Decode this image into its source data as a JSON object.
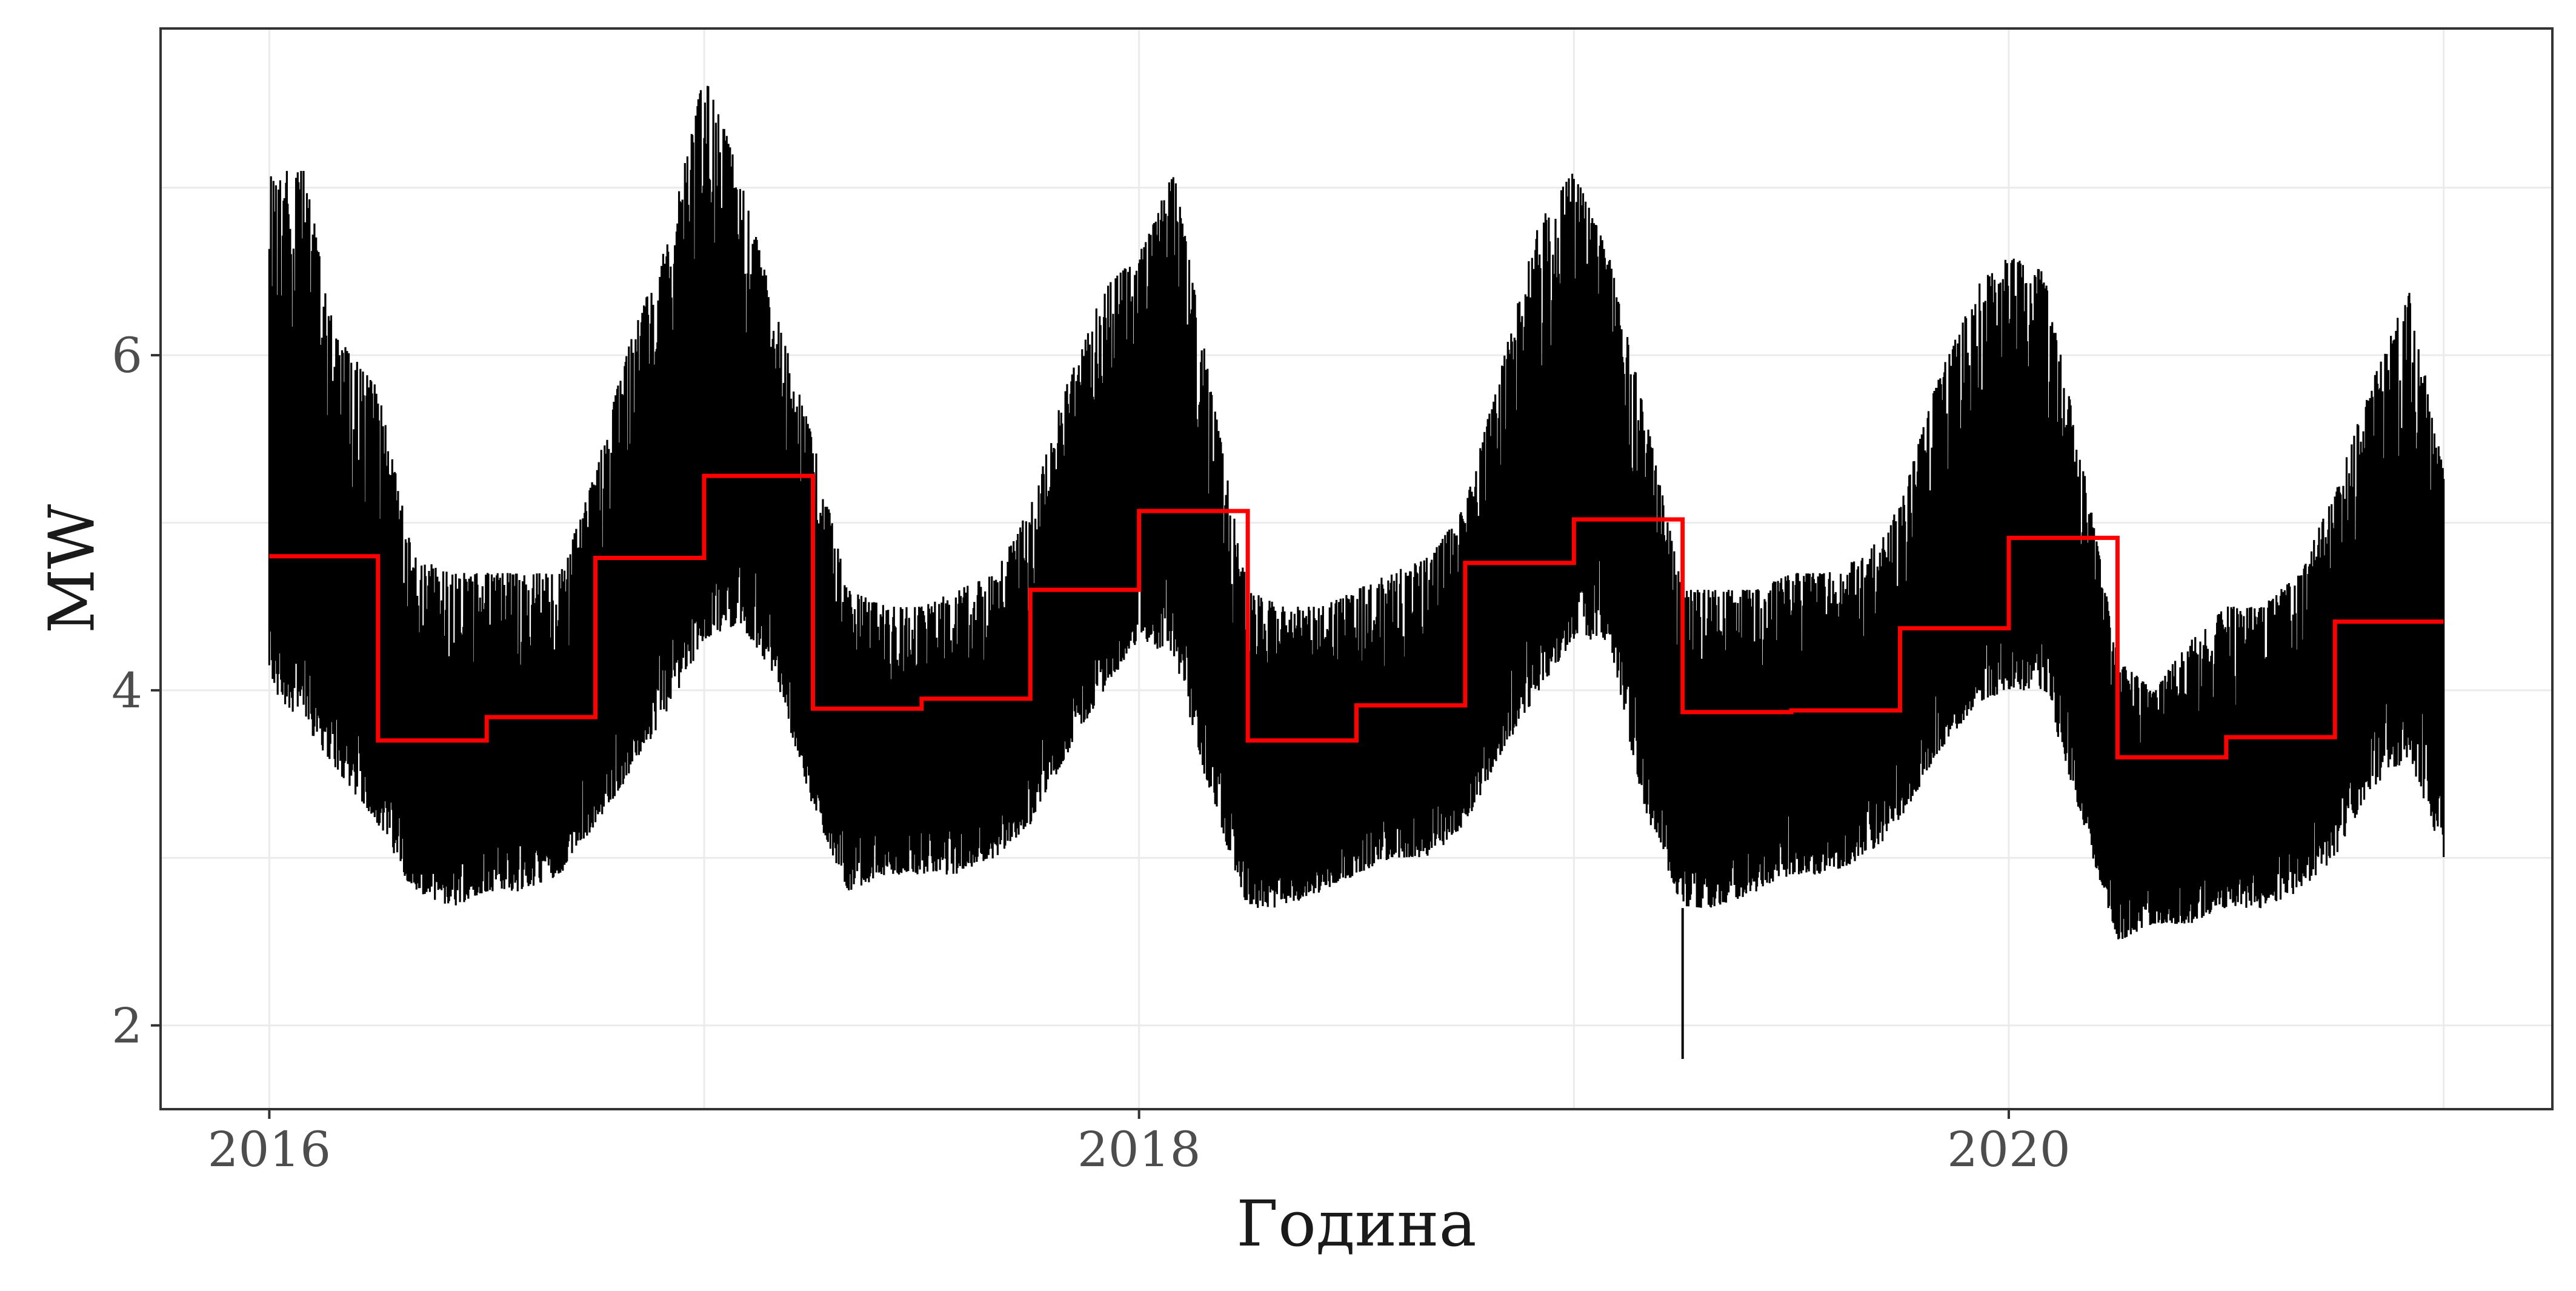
{
  "chart_data": {
    "type": "line",
    "title": "",
    "xlabel": "Година",
    "ylabel": "MW",
    "xlim": [
      2015.75,
      2021.25
    ],
    "ylim": [
      1.5,
      7.95
    ],
    "x_ticks": [
      {
        "value": 2016,
        "label": "2016"
      },
      {
        "value": 2018,
        "label": "2018"
      },
      {
        "value": 2020,
        "label": "2020"
      }
    ],
    "y_ticks": [
      {
        "value": 2,
        "label": "2"
      },
      {
        "value": 4,
        "label": "4"
      },
      {
        "value": 6,
        "label": "6"
      }
    ],
    "grid": true,
    "legend": "none",
    "colors": {
      "series": "#000000",
      "step_mean": "#ff0000",
      "grid": "#ebebeb",
      "panel_border": "#333333"
    },
    "series": [
      {
        "kind": "band",
        "color": "#000000",
        "x": [
          2016.0,
          2016.08,
          2016.16,
          2016.25,
          2016.33,
          2016.42,
          2016.5,
          2016.58,
          2016.67,
          2016.75,
          2016.83,
          2016.92,
          2017.0,
          2017.08,
          2017.16,
          2017.25,
          2017.33,
          2017.42,
          2017.5,
          2017.58,
          2017.67,
          2017.75,
          2017.83,
          2017.92,
          2018.0,
          2018.08,
          2018.16,
          2018.25,
          2018.33,
          2018.42,
          2018.5,
          2018.58,
          2018.67,
          2018.75,
          2018.83,
          2018.92,
          2019.0,
          2019.08,
          2019.16,
          2019.25,
          2019.33,
          2019.42,
          2019.5,
          2019.58,
          2019.67,
          2019.75,
          2019.83,
          2019.92,
          2020.0,
          2020.08,
          2020.16,
          2020.25,
          2020.33,
          2020.42,
          2020.5,
          2020.58,
          2020.67,
          2020.75,
          2020.83,
          2020.92,
          2021.0
        ],
        "min": [
          4.0,
          3.8,
          3.5,
          3.2,
          2.8,
          2.7,
          2.8,
          2.8,
          2.9,
          3.2,
          3.5,
          3.9,
          4.3,
          4.4,
          4.1,
          3.3,
          2.8,
          2.9,
          2.9,
          2.9,
          3.0,
          3.2,
          3.6,
          4.0,
          4.3,
          4.2,
          3.4,
          2.7,
          2.7,
          2.8,
          2.9,
          3.0,
          3.0,
          3.2,
          3.6,
          4.0,
          4.3,
          4.3,
          3.3,
          2.7,
          2.7,
          2.8,
          2.9,
          2.9,
          3.0,
          3.2,
          3.6,
          3.9,
          4.0,
          4.0,
          3.3,
          2.5,
          2.6,
          2.6,
          2.7,
          2.7,
          2.8,
          3.0,
          3.4,
          3.6,
          3.0
        ],
        "max": [
          7.1,
          7.1,
          6.1,
          5.8,
          4.8,
          4.7,
          4.7,
          4.7,
          4.7,
          5.3,
          6.1,
          6.7,
          7.7,
          7.1,
          6.3,
          5.5,
          4.6,
          4.5,
          4.5,
          4.6,
          4.7,
          5.1,
          5.8,
          6.4,
          6.6,
          7.1,
          5.9,
          4.6,
          4.5,
          4.5,
          4.6,
          4.7,
          4.8,
          5.1,
          5.9,
          6.8,
          7.1,
          6.6,
          5.7,
          4.6,
          4.6,
          4.6,
          4.7,
          4.7,
          4.8,
          5.1,
          5.8,
          6.4,
          6.6,
          6.5,
          5.5,
          4.2,
          4.0,
          4.3,
          4.5,
          4.5,
          4.7,
          5.2,
          5.8,
          6.4,
          5.3
        ],
        "outliers": [
          {
            "x": 2019.25,
            "y": 1.8
          }
        ]
      },
      {
        "kind": "step",
        "color": "#ff0000",
        "x": [
          2016.0,
          2016.25,
          2016.5,
          2016.75,
          2017.0,
          2017.25,
          2017.5,
          2017.75,
          2018.0,
          2018.25,
          2018.5,
          2018.75,
          2019.0,
          2019.25,
          2019.5,
          2019.75,
          2020.0,
          2020.25,
          2020.5,
          2020.75,
          2021.0
        ],
        "y": [
          4.8,
          3.7,
          3.84,
          4.79,
          5.28,
          3.89,
          3.95,
          4.6,
          5.07,
          3.7,
          3.91,
          4.76,
          5.02,
          3.87,
          3.88,
          4.37,
          4.91,
          3.6,
          3.72,
          4.41,
          4.41
        ]
      }
    ]
  }
}
